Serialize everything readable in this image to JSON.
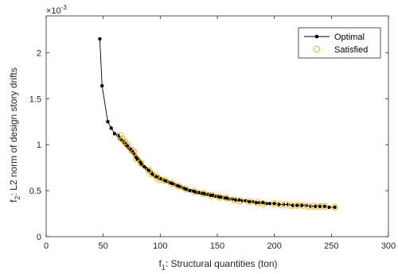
{
  "chart_data": {
    "type": "scatter",
    "xlabel": "f1: Structural quantities (ton)",
    "xlabel_main": "f",
    "xlabel_sub": "1",
    "xlabel_rest": ": Structural quantities (ton)",
    "ylabel": "f2: L2 norm of design story drifts",
    "ylabel_main": "f",
    "ylabel_sub": "2",
    "ylabel_rest": ": L2 norm of design story drifts",
    "exponent_label": "×10",
    "exponent_power": "-3",
    "xlim": [
      0,
      300
    ],
    "ylim": [
      0,
      2.4
    ],
    "y_scale_factor": "1e-3",
    "xticks": [
      0,
      50,
      100,
      150,
      200,
      250,
      300
    ],
    "yticks": [
      0,
      0.5,
      1,
      1.5,
      2
    ],
    "xtick_labels": [
      "0",
      "50",
      "100",
      "150",
      "200",
      "250",
      "300"
    ],
    "ytick_labels": [
      "0",
      "0.5",
      "1",
      "1.5",
      "2"
    ],
    "grid": false,
    "legend_position": "top-right",
    "colors": {
      "optimal": "#000000",
      "satisfied": "#EDB120",
      "axis": "#262626"
    },
    "series": [
      {
        "name": "Optimal",
        "style": "line-with-dot-markers",
        "x": [
          47,
          49,
          54,
          57,
          60,
          63,
          64,
          65,
          66,
          67,
          68,
          69,
          70,
          71,
          72,
          73,
          74,
          75,
          76,
          77,
          78,
          79,
          80,
          81,
          82,
          83,
          84,
          86,
          88,
          90,
          92,
          93,
          95,
          97,
          99,
          100,
          102,
          104,
          106,
          108,
          110,
          112,
          114,
          116,
          118,
          120,
          122,
          124,
          126,
          128,
          130,
          132,
          134,
          136,
          138,
          140,
          142,
          144,
          146,
          148,
          150,
          152,
          154,
          156,
          158,
          160,
          163,
          166,
          169,
          172,
          175,
          178,
          181,
          184,
          187,
          190,
          193,
          196,
          200,
          204,
          208,
          212,
          216,
          220,
          224,
          228,
          232,
          236,
          240,
          244,
          248,
          253
        ],
        "y": [
          2.15,
          1.64,
          1.25,
          1.18,
          1.12,
          1.1,
          1.08,
          1.06,
          1.05,
          1.04,
          1.03,
          1.02,
          1.0,
          0.99,
          0.97,
          0.96,
          0.95,
          0.93,
          0.92,
          0.9,
          0.88,
          0.86,
          0.84,
          0.84,
          0.82,
          0.8,
          0.78,
          0.76,
          0.74,
          0.72,
          0.7,
          0.68,
          0.66,
          0.65,
          0.64,
          0.63,
          0.62,
          0.61,
          0.6,
          0.59,
          0.58,
          0.57,
          0.56,
          0.55,
          0.54,
          0.53,
          0.52,
          0.51,
          0.5,
          0.5,
          0.49,
          0.48,
          0.48,
          0.47,
          0.47,
          0.46,
          0.46,
          0.45,
          0.45,
          0.44,
          0.44,
          0.43,
          0.43,
          0.42,
          0.42,
          0.41,
          0.41,
          0.4,
          0.4,
          0.39,
          0.39,
          0.38,
          0.38,
          0.37,
          0.37,
          0.37,
          0.36,
          0.36,
          0.36,
          0.35,
          0.35,
          0.35,
          0.34,
          0.34,
          0.34,
          0.34,
          0.33,
          0.33,
          0.33,
          0.33,
          0.32,
          0.32
        ]
      },
      {
        "name": "Satisfied",
        "style": "open-circle-markers",
        "x": [
          65,
          67,
          69,
          71,
          75,
          77,
          79,
          83,
          90,
          93,
          97,
          100,
          104,
          110,
          116,
          122,
          130,
          138,
          145,
          152,
          158,
          165,
          170,
          178,
          185,
          190,
          200,
          205,
          210,
          215,
          220,
          225,
          230,
          235,
          240,
          244,
          253
        ],
        "y": [
          1.1,
          1.06,
          1.03,
          1.0,
          0.94,
          0.92,
          0.85,
          0.8,
          0.72,
          0.68,
          0.65,
          0.62,
          0.61,
          0.58,
          0.55,
          0.52,
          0.49,
          0.47,
          0.45,
          0.43,
          0.42,
          0.4,
          0.39,
          0.38,
          0.37,
          0.36,
          0.36,
          0.35,
          0.35,
          0.34,
          0.34,
          0.34,
          0.33,
          0.33,
          0.33,
          0.33,
          0.32
        ]
      }
    ]
  }
}
